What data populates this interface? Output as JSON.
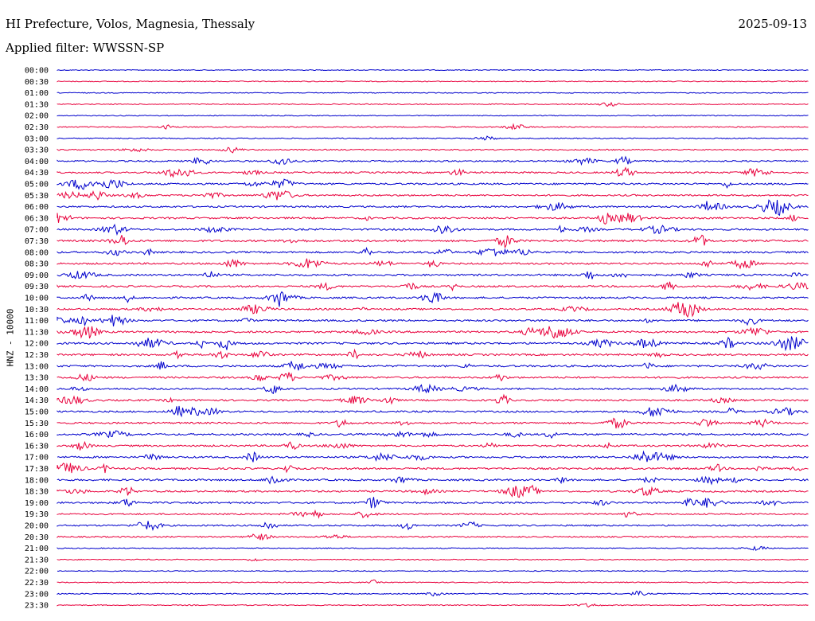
{
  "header": {
    "title": "HI Prefecture, Volos, Magnesia, Thessaly",
    "date": "2025-09-13",
    "filter": "Applied filter: WWSSN-SP"
  },
  "chart_data": {
    "type": "line",
    "ylabel": "HNZ - 10000",
    "y_ticks": [
      "00:00",
      "00:30",
      "01:00",
      "01:30",
      "02:00",
      "02:30",
      "03:00",
      "03:30",
      "04:00",
      "04:30",
      "05:00",
      "05:30",
      "06:00",
      "06:30",
      "07:00",
      "07:30",
      "08:00",
      "08:30",
      "09:00",
      "09:30",
      "10:00",
      "10:30",
      "11:00",
      "11:30",
      "12:00",
      "12:30",
      "13:00",
      "13:30",
      "14:00",
      "14:30",
      "15:00",
      "15:30",
      "16:00",
      "16:30",
      "17:00",
      "17:30",
      "18:00",
      "18:30",
      "19:00",
      "19:30",
      "20:00",
      "20:30",
      "21:00",
      "21:30",
      "22:00",
      "22:30",
      "23:00",
      "23:30"
    ],
    "trace_colors": [
      "#0000cc",
      "#e8003c"
    ],
    "x_range_minutes": [
      0,
      30
    ],
    "grid": false,
    "legend": "none",
    "activity": [
      0.05,
      0.05,
      0.05,
      0.1,
      0.05,
      0.2,
      0.15,
      0.3,
      0.55,
      0.6,
      0.7,
      0.65,
      0.7,
      0.75,
      0.7,
      0.8,
      0.75,
      0.7,
      0.8,
      0.7,
      0.75,
      0.7,
      0.8,
      0.85,
      0.9,
      0.75,
      0.8,
      0.7,
      0.65,
      0.7,
      0.7,
      0.65,
      0.75,
      0.7,
      0.75,
      0.8,
      0.8,
      0.75,
      0.7,
      0.5,
      0.55,
      0.4,
      0.1,
      0.1,
      0.05,
      0.1,
      0.2,
      0.1
    ]
  }
}
